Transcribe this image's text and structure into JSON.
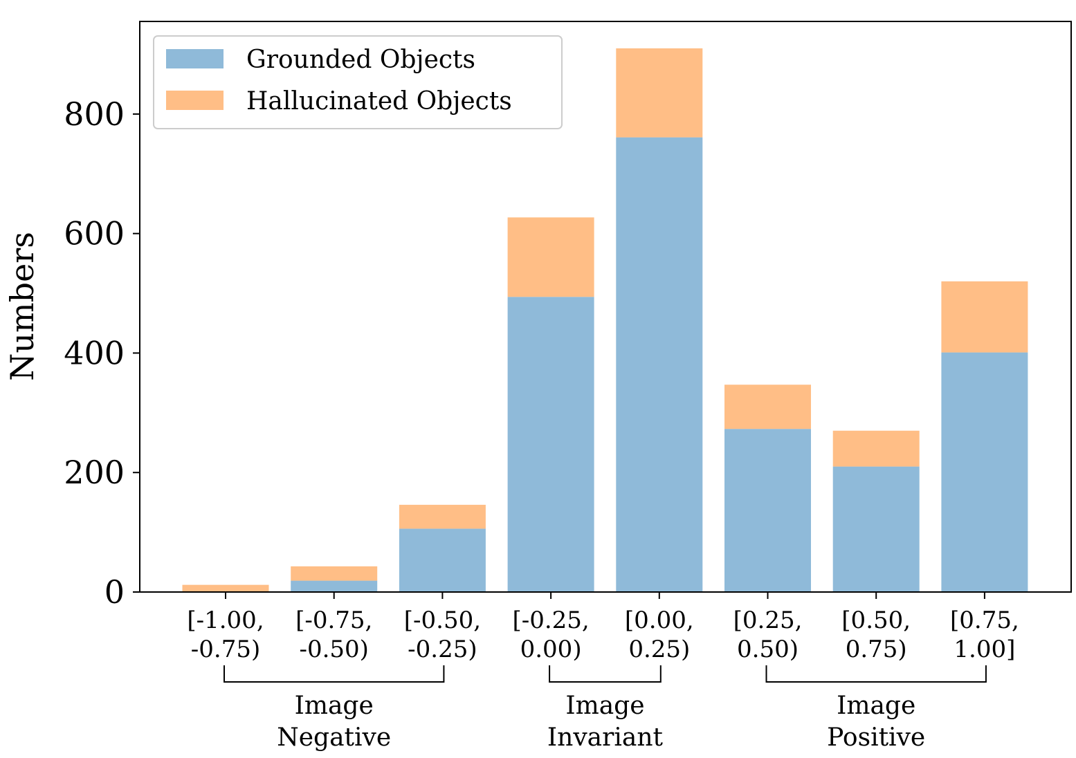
{
  "chart_data": {
    "type": "bar",
    "stacked": true,
    "ylabel": "Numbers",
    "ylim": [
      0,
      955
    ],
    "yticks": [
      0,
      200,
      400,
      600,
      800
    ],
    "grid": false,
    "legend_position": "top-left",
    "categories": [
      [
        "[-1.00,",
        "-0.75)"
      ],
      [
        "[-0.75,",
        "-0.50)"
      ],
      [
        "[-0.50,",
        "-0.25)"
      ],
      [
        "[-0.25,",
        "0.00)"
      ],
      [
        "[0.00,",
        "0.25)"
      ],
      [
        "[0.25,",
        "0.50)"
      ],
      [
        "[0.50,",
        "0.75)"
      ],
      [
        "[0.75,",
        "1.00]"
      ]
    ],
    "series": [
      {
        "name": "Grounded Objects",
        "color": "#8fbad9",
        "values": [
          0,
          19,
          106,
          494,
          761,
          273,
          210,
          401
        ]
      },
      {
        "name": "Hallucinated Objects",
        "color": "#ffbe86",
        "values": [
          12,
          24,
          40,
          133,
          149,
          74,
          60,
          119
        ]
      }
    ],
    "groups": [
      {
        "lines": [
          "Image",
          "Negative"
        ],
        "from": 0,
        "to": 2
      },
      {
        "lines": [
          "Image",
          "Invariant"
        ],
        "from": 3,
        "to": 4
      },
      {
        "lines": [
          "Image",
          "Positive"
        ],
        "from": 5,
        "to": 7
      }
    ]
  }
}
